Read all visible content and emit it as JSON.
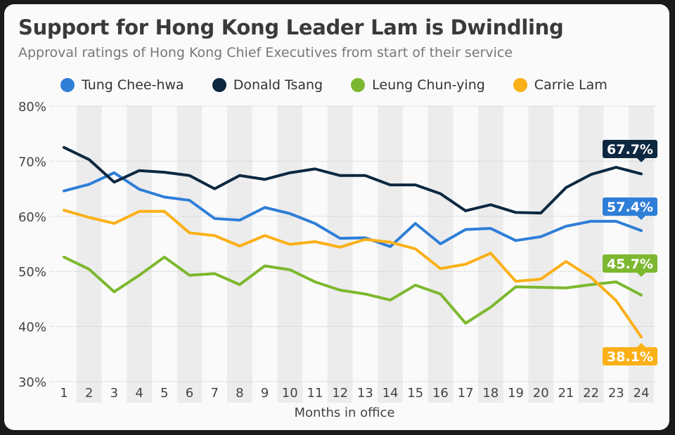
{
  "title": "Support for Hong Kong Leader Lam is Dwindling",
  "subtitle": "Approval ratings of Hong Kong Chief Executives from start of their service",
  "chart_data": {
    "type": "line",
    "xlabel": "Months in office",
    "ylabel": "",
    "x": [
      1,
      2,
      3,
      4,
      5,
      6,
      7,
      8,
      9,
      10,
      11,
      12,
      13,
      14,
      15,
      16,
      17,
      18,
      19,
      20,
      21,
      22,
      23,
      24
    ],
    "ylim": [
      30,
      80
    ],
    "yticks": [
      "30%",
      "40%",
      "50%",
      "60%",
      "70%",
      "80%"
    ],
    "grid": true,
    "legend_position": "top",
    "series": [
      {
        "name": "Tung Chee-hwa",
        "color": "#2f7ed8",
        "end_label": "57.4%",
        "values": [
          64.6,
          65.8,
          67.9,
          64.9,
          63.5,
          62.9,
          59.6,
          59.3,
          61.6,
          60.5,
          58.7,
          56.0,
          56.1,
          54.5,
          58.7,
          55.0,
          57.6,
          57.8,
          55.6,
          56.3,
          58.2,
          59.1,
          59.1,
          57.4
        ]
      },
      {
        "name": "Donald Tsang",
        "color": "#0d2840",
        "end_label": "67.7%",
        "values": [
          72.5,
          70.3,
          66.2,
          68.3,
          68.0,
          67.4,
          65.0,
          67.4,
          66.7,
          67.9,
          68.6,
          67.4,
          67.4,
          65.7,
          65.7,
          64.1,
          61.0,
          62.1,
          60.7,
          60.6,
          65.2,
          67.6,
          68.9,
          67.7
        ]
      },
      {
        "name": "Leung Chun-ying",
        "color": "#7cb82f",
        "end_label": "45.7%",
        "values": [
          52.6,
          50.4,
          46.3,
          49.3,
          52.6,
          49.3,
          49.6,
          47.6,
          51.0,
          50.3,
          48.1,
          46.6,
          45.9,
          44.8,
          47.5,
          45.9,
          40.6,
          43.5,
          47.2,
          47.1,
          47.0,
          47.6,
          48.1,
          45.7
        ]
      },
      {
        "name": "Carrie Lam",
        "color": "#fbb017",
        "end_label": "38.1%",
        "values": [
          61.1,
          59.8,
          58.7,
          60.9,
          60.9,
          57.0,
          56.5,
          54.6,
          56.5,
          54.9,
          55.4,
          54.4,
          55.8,
          55.3,
          54.1,
          50.5,
          51.3,
          53.3,
          48.2,
          48.6,
          51.8,
          48.9,
          44.7,
          38.1
        ]
      }
    ]
  }
}
